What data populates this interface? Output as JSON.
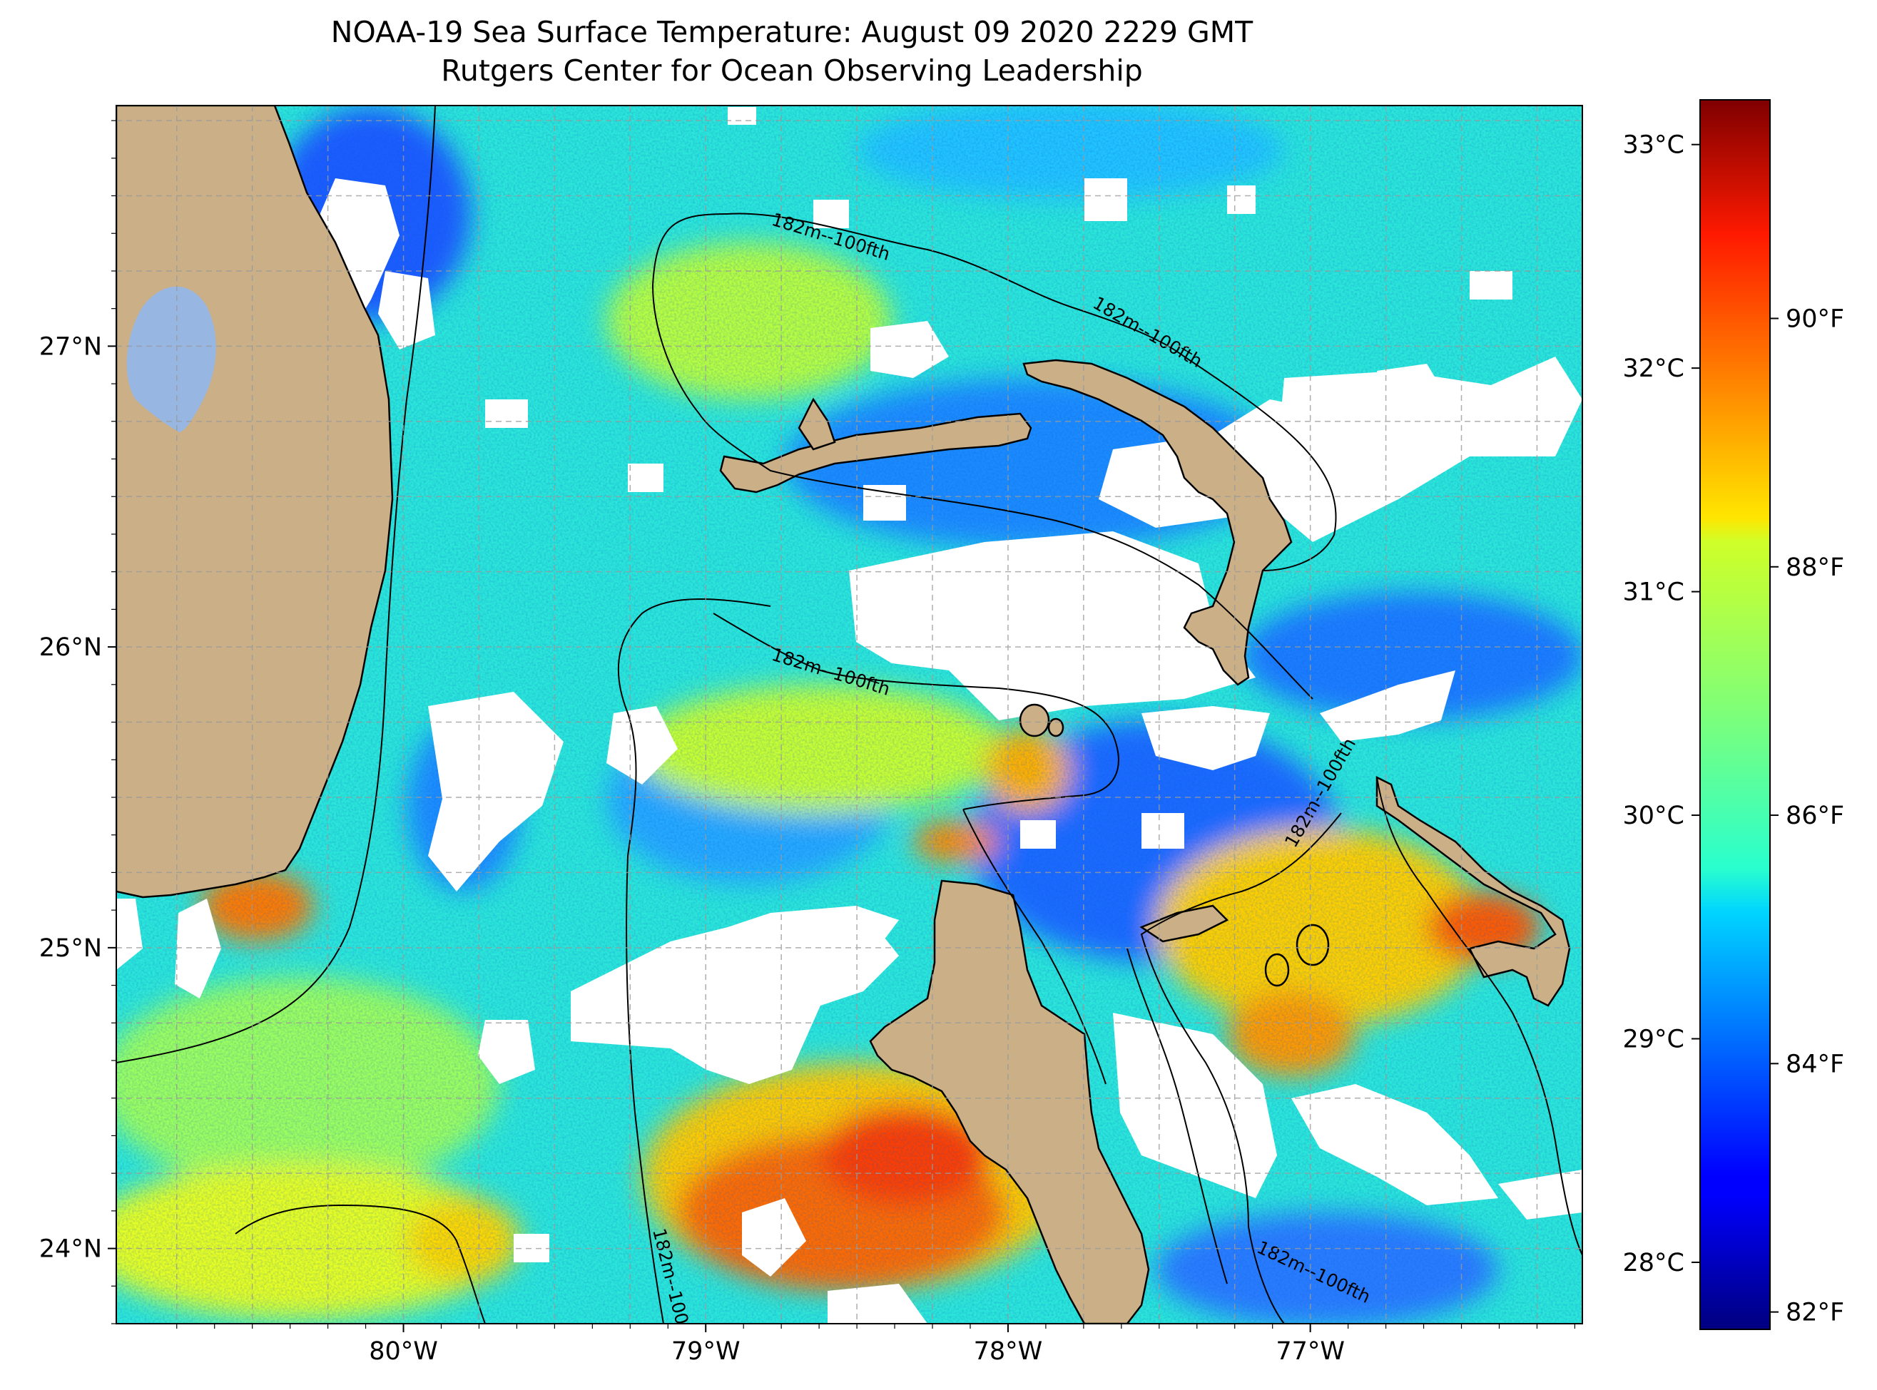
{
  "title": {
    "line1": "NOAA-19 Sea Surface Temperature: August 09 2020 2229 GMT",
    "line2": "Rutgers Center for Ocean Observing Leadership"
  },
  "map": {
    "lon_range": [
      -80.95,
      -76.1
    ],
    "lat_range": [
      23.75,
      27.8
    ],
    "lon_ticks": [
      {
        "value": -80,
        "label": "80°W"
      },
      {
        "value": -79,
        "label": "79°W"
      },
      {
        "value": -78,
        "label": "78°W"
      },
      {
        "value": -77,
        "label": "77°W"
      }
    ],
    "lat_ticks": [
      {
        "value": 24,
        "label": "24°N"
      },
      {
        "value": 25,
        "label": "25°N"
      },
      {
        "value": 26,
        "label": "26°N"
      },
      {
        "value": 27,
        "label": "27°N"
      }
    ],
    "gridlines": true,
    "contour_label": "182m--100fth",
    "land_color": "#cbaf87",
    "lake_color": "#97b6e2",
    "cloud_color": "#ffffff"
  },
  "colorbar": {
    "colormap": "jet",
    "range_c": [
      27.7,
      33.2
    ],
    "celsius_ticks": [
      {
        "value": 28,
        "label": "28°C"
      },
      {
        "value": 29,
        "label": "29°C"
      },
      {
        "value": 30,
        "label": "30°C"
      },
      {
        "value": 31,
        "label": "31°C"
      },
      {
        "value": 32,
        "label": "32°C"
      },
      {
        "value": 33,
        "label": "33°C"
      }
    ],
    "fahrenheit_ticks": [
      {
        "value": 82,
        "label": "82°F"
      },
      {
        "value": 84,
        "label": "84°F"
      },
      {
        "value": 86,
        "label": "86°F"
      },
      {
        "value": 88,
        "label": "88°F"
      },
      {
        "value": 90,
        "label": "90°F"
      }
    ]
  }
}
